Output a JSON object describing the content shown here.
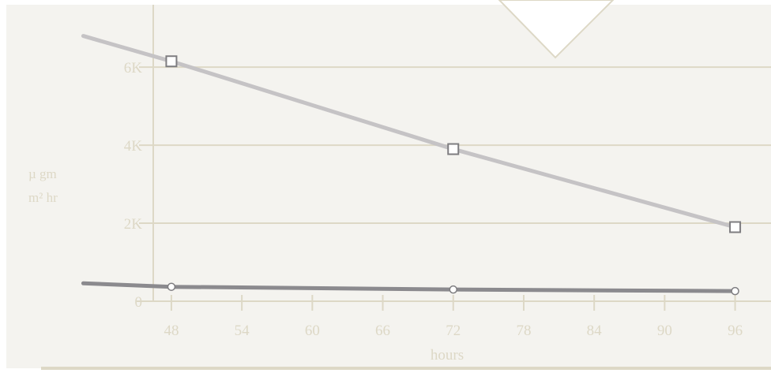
{
  "chart_data": {
    "type": "line",
    "xlabel": "hours",
    "ylabel_lines": [
      "µ gm",
      "m² hr"
    ],
    "xlim": [
      40,
      96.5
    ],
    "ylim": [
      0,
      7600
    ],
    "x_ticks": [
      48,
      54,
      60,
      66,
      72,
      78,
      84,
      90,
      96
    ],
    "x_tick_labels": [
      "48",
      "54",
      "60",
      "66",
      "72",
      "78",
      "84",
      "90",
      "96"
    ],
    "y_ticks": [
      0,
      2000,
      4000,
      6000
    ],
    "y_tick_labels": [
      "0",
      "2K",
      "4K",
      "6K"
    ],
    "grid": "horizontal",
    "series": [
      {
        "marker": "square",
        "color": "#c5c3c5",
        "points": [
          {
            "x": 48,
            "y": 6150
          },
          {
            "x": 72,
            "y": 3900
          },
          {
            "x": 96,
            "y": 1900
          }
        ],
        "line_start": {
          "x": 40.5,
          "y": 6800
        }
      },
      {
        "marker": "circle",
        "color": "#8b8a8e",
        "points": [
          {
            "x": 48,
            "y": 370
          },
          {
            "x": 72,
            "y": 300
          },
          {
            "x": 96,
            "y": 260
          }
        ],
        "line_start": {
          "x": 40.5,
          "y": 460
        }
      }
    ],
    "colors": {
      "background": "#f4f3ef",
      "grid": "#ddd8c6",
      "axis": "#ddd8c6",
      "bottom_bar": "#ddd8c6",
      "arrow_fill": "#ffffff",
      "arrow_stroke": "#ddd8c6"
    }
  }
}
